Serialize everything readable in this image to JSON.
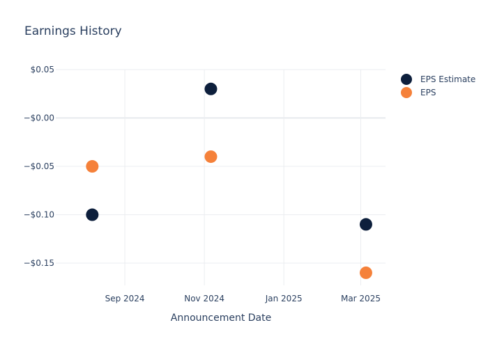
{
  "chart_data": {
    "type": "scatter",
    "title": "Earnings History",
    "xlabel": "Announcement Date",
    "ylabel": "",
    "x_ticks": [
      {
        "date": "2024-09-01",
        "label": "Sep 2024"
      },
      {
        "date": "2024-11-01",
        "label": "Nov 2024"
      },
      {
        "date": "2025-01-01",
        "label": "Jan 2025"
      },
      {
        "date": "2025-03-01",
        "label": "Mar 2025"
      }
    ],
    "xlim": [
      "2024-07-10",
      "2025-03-20"
    ],
    "y_ticks": [
      0.05,
      0,
      -0.05,
      -0.1,
      -0.15
    ],
    "y_tick_labels": [
      "$0.05",
      "−$0.00",
      "−$0.05",
      "−$0.10",
      "−$0.15"
    ],
    "ylim": [
      -0.173,
      0.05
    ],
    "grid": true,
    "legend_position": "top-right",
    "series": [
      {
        "name": "EPS Estimate",
        "color": "#0d1f3c",
        "points": [
          {
            "date": "2024-08-07",
            "value": -0.1
          },
          {
            "date": "2024-11-06",
            "value": 0.03
          },
          {
            "date": "2025-03-05",
            "value": -0.11
          }
        ]
      },
      {
        "name": "EPS",
        "color": "#f5813a",
        "points": [
          {
            "date": "2024-08-07",
            "value": -0.05
          },
          {
            "date": "2024-11-06",
            "value": -0.04
          },
          {
            "date": "2025-03-05",
            "value": -0.16
          }
        ]
      }
    ]
  }
}
